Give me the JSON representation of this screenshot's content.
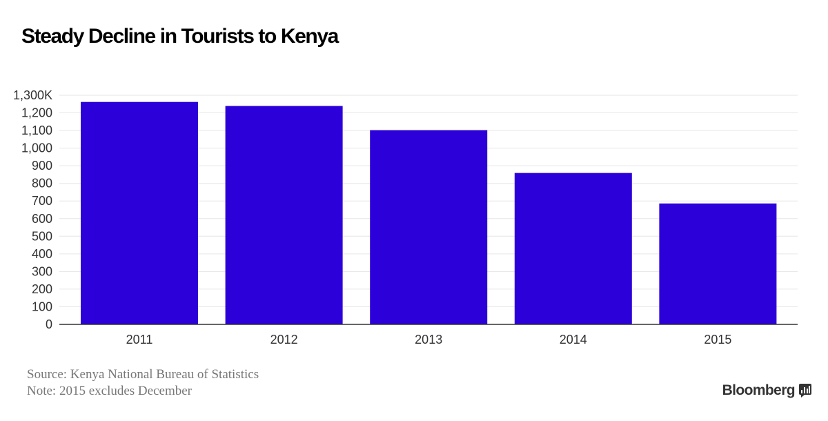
{
  "chart_data": {
    "type": "bar",
    "title": "Steady Decline in Tourists to Kenya",
    "categories": [
      "2011",
      "2012",
      "2013",
      "2014",
      "2015"
    ],
    "values": [
      1262,
      1239,
      1102,
      859,
      686
    ],
    "ylim": [
      0,
      1300
    ],
    "yticks": [
      0,
      100,
      200,
      300,
      400,
      500,
      600,
      700,
      800,
      900,
      1000,
      1100,
      1200,
      1300
    ],
    "ytick_labels": [
      "0",
      "100",
      "200",
      "300",
      "400",
      "500",
      "600",
      "700",
      "800",
      "900",
      "1,000",
      "1,100",
      "1,200",
      "1,300K"
    ],
    "xlabel": "",
    "ylabel": "",
    "grid": true,
    "bar_color": "#2b00d9"
  },
  "footer": {
    "source": "Source: Kenya National Bureau of Statistics",
    "note": "Note: 2015 excludes December",
    "brand": "Bloomberg"
  },
  "colors": {
    "grid": "#e6e6e6",
    "axis": "#333333",
    "footer_text": "#777777"
  }
}
